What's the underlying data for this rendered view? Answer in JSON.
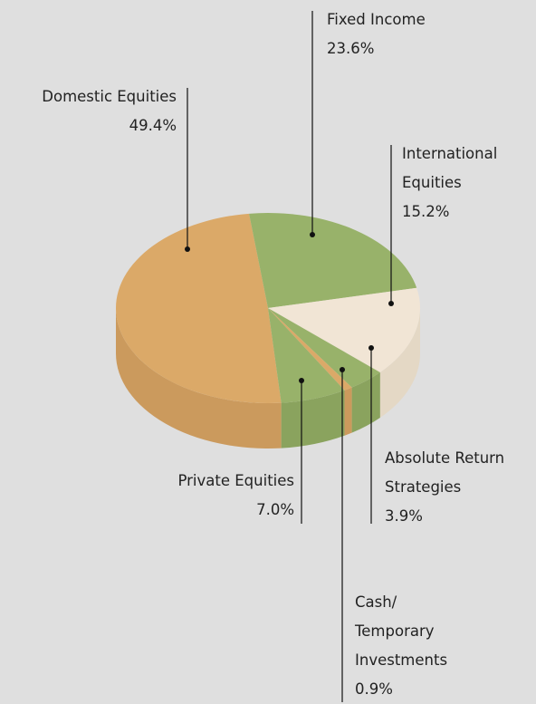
{
  "chart_data": {
    "type": "pie",
    "categories": [
      "Domestic Equities",
      "Fixed Income",
      "International Equities",
      "Absolute Return Strategies",
      "Cash/ Temporary Investments",
      "Private Equities"
    ],
    "values": [
      49.4,
      23.6,
      15.2,
      3.9,
      0.9,
      7.0
    ],
    "value_labels": [
      "49.4%",
      "23.6%",
      "15.2%",
      "3.9%",
      "0.9%",
      "7.0%"
    ],
    "colors": [
      "#dba968",
      "#98b26a",
      "#f1e5d5",
      "#98b26a",
      "#dba968",
      "#98b26a"
    ],
    "side_colors": [
      "#cb9a5d",
      "#8aa35e",
      "#e4d8c5",
      "#8aa35e",
      "#cb9a5d",
      "#8aa35e"
    ]
  }
}
